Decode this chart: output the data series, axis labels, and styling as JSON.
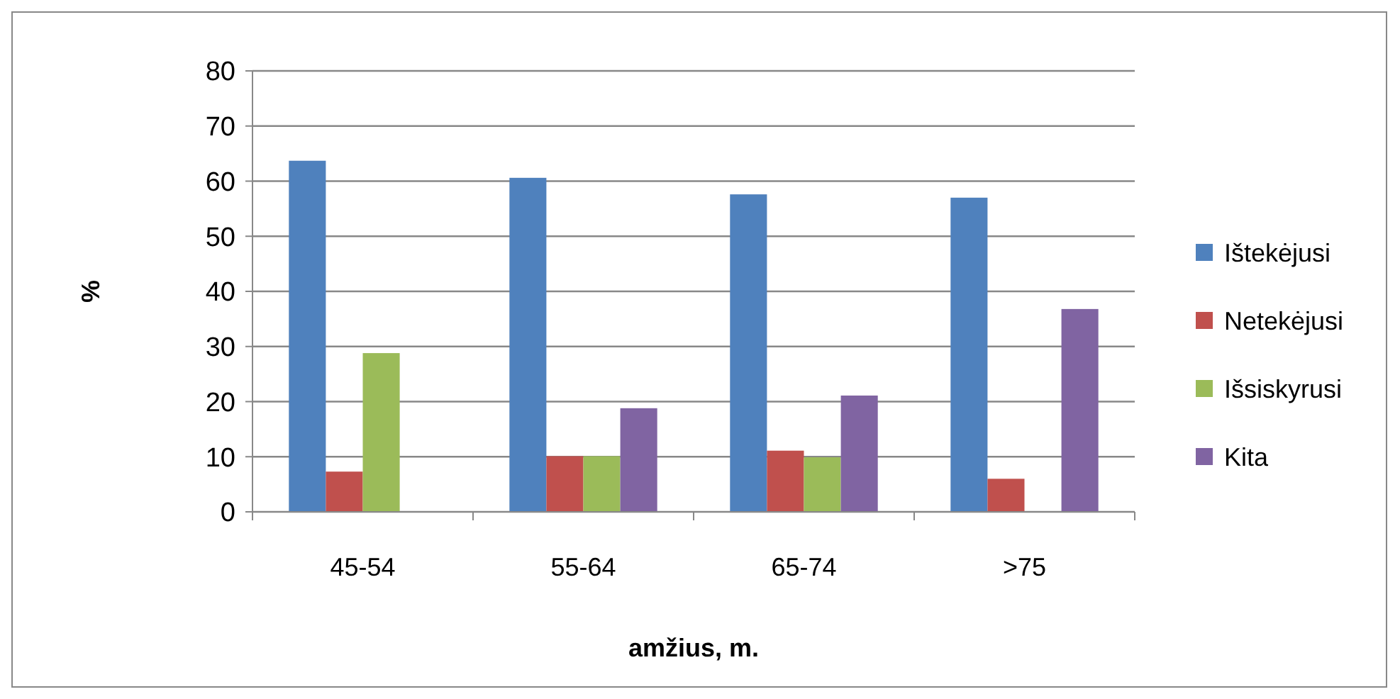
{
  "chart_data": {
    "type": "bar",
    "xlabel": "amžius, m.",
    "ylabel": "%",
    "categories": [
      "45-54",
      "55-64",
      "65-74",
      ">75"
    ],
    "series": [
      {
        "name": "Ištekėjusi",
        "color": "#4f81bd",
        "values": [
          63.7,
          60.6,
          57.6,
          57.0
        ]
      },
      {
        "name": "Netekėjusi",
        "color": "#c0504d",
        "values": [
          7.3,
          10.1,
          11.1,
          6.0
        ]
      },
      {
        "name": "Išsiskyrusi",
        "color": "#9bbb59",
        "values": [
          28.8,
          10.1,
          9.9,
          null
        ]
      },
      {
        "name": "Kita",
        "color": "#8064a2",
        "values": [
          null,
          18.8,
          21.1,
          36.8
        ]
      }
    ],
    "ylim": [
      0,
      80
    ],
    "yticks": [
      0,
      10,
      20,
      30,
      40,
      50,
      60,
      70,
      80
    ],
    "grid": "y",
    "legend": "right"
  }
}
